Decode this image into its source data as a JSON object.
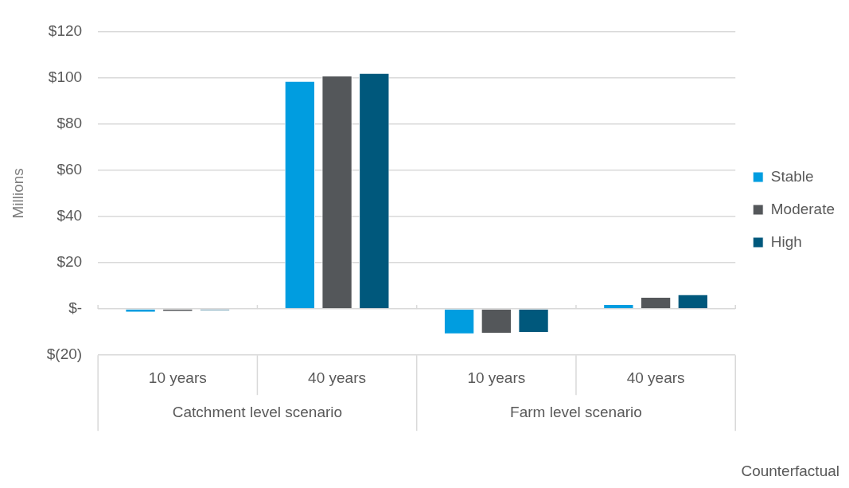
{
  "chart_data": {
    "type": "bar",
    "ylabel": "Millions",
    "categories": [
      "10 years",
      "40 years",
      "10 years",
      "40 years"
    ],
    "series": [
      {
        "name": "Stable",
        "color": "#009de0",
        "values": [
          -1.5,
          98.5,
          -10.9,
          2.1
        ]
      },
      {
        "name": "Moderate",
        "color": "#54575a",
        "values": [
          -1.2,
          100.9,
          -10.6,
          5.2
        ]
      },
      {
        "name": "High",
        "color": "#00587c",
        "values": [
          -0.8,
          102,
          -10.3,
          6.3
        ]
      }
    ],
    "ylim": [
      -20,
      120
    ],
    "yticks": [
      {
        "value": -20,
        "label": "$(20)"
      },
      {
        "value": 0,
        "label": "$-"
      },
      {
        "value": 20,
        "label": "$20"
      },
      {
        "value": 40,
        "label": "$40"
      },
      {
        "value": 60,
        "label": "$60"
      },
      {
        "value": 80,
        "label": "$80"
      },
      {
        "value": 100,
        "label": "$100"
      },
      {
        "value": 120,
        "label": "$120"
      }
    ],
    "annotations": [
      "Catchment level scenario",
      "Farm level scenario",
      "Counterfactual"
    ],
    "grid": "y",
    "legend": "right"
  }
}
